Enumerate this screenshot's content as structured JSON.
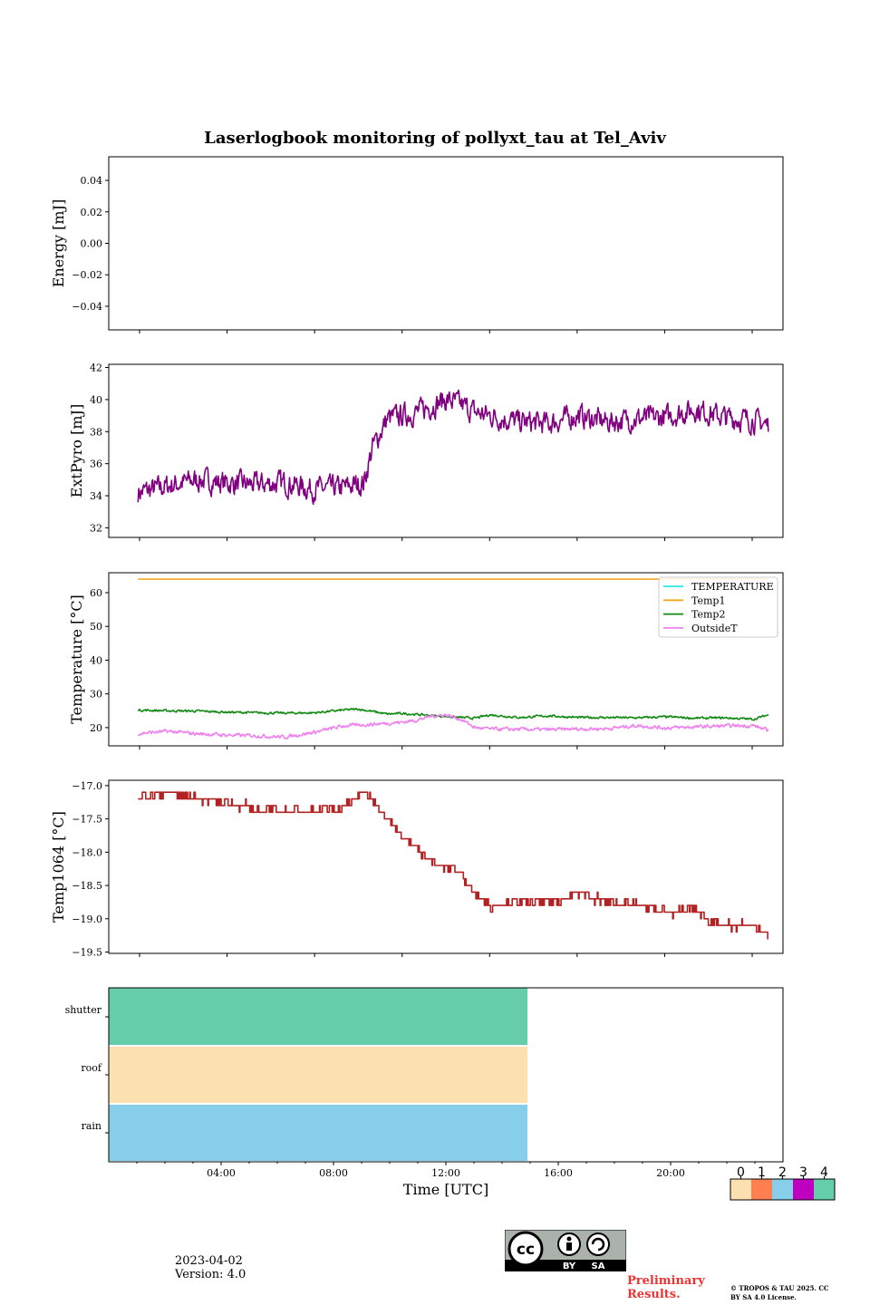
{
  "figure": {
    "title": "Laserlogbook monitoring of pollyxt_tau at Tel_Aviv",
    "date": "2023-04-02",
    "version": "Version: 4.0",
    "preliminary": "Preliminary Results.",
    "copyright": "© TROPOS & TAU 2025. CC BY SA 4.0 License.",
    "license_badge": [
      "BY",
      "SA"
    ]
  },
  "chart_data": [
    {
      "type": "line",
      "name": "energy",
      "ylabel": "Energy [mJ]",
      "ylim": [
        -0.055,
        0.055
      ],
      "yticks": [
        0.04,
        0.02,
        0.0,
        -0.02,
        -0.04
      ],
      "ytick_labels": [
        "0.04",
        "0.02",
        "0.00",
        "−0.02",
        "−0.04"
      ],
      "xlim": [
        -1.1,
        23.0
      ],
      "series": []
    },
    {
      "type": "line",
      "name": "extpyro",
      "ylabel": "ExtPyro [mJ]",
      "ylim": [
        31.4,
        42.2
      ],
      "yticks": [
        32,
        34,
        36,
        38,
        40,
        42
      ],
      "ytick_labels": [
        "32",
        "34",
        "36",
        "38",
        "40",
        "42"
      ],
      "xlim": [
        0.0,
        23.0
      ],
      "color": "#800080",
      "series": [
        {
          "x": [
            1.0,
            2.0,
            3.0,
            4.0,
            5.0,
            6.0,
            7.0,
            8.0,
            8.7,
            9.0,
            9.5,
            10.0,
            10.5,
            11.0,
            11.5,
            12.0,
            12.5,
            13.0,
            14.0,
            15.0,
            16.0,
            17.0,
            18.0,
            19.0,
            20.0,
            21.0,
            22.0,
            22.5
          ],
          "y": [
            34.2,
            34.6,
            35.0,
            34.8,
            34.7,
            34.8,
            34.4,
            34.5,
            34.8,
            37.0,
            38.8,
            39.0,
            39.2,
            39.6,
            40.0,
            39.7,
            39.2,
            39.0,
            38.6,
            38.5,
            39.0,
            38.6,
            38.8,
            38.9,
            39.4,
            38.9,
            38.7,
            38.4
          ],
          "noise_amplitude": 1.1
        }
      ]
    },
    {
      "type": "line",
      "name": "temperature",
      "ylabel": "Temperature [°C]",
      "ylim": [
        14.6,
        65.9
      ],
      "yticks": [
        20,
        30,
        40,
        50,
        60
      ],
      "ytick_labels": [
        "20",
        "30",
        "40",
        "50",
        "60"
      ],
      "xlim": [
        0.0,
        23.0
      ],
      "legend": "top-right",
      "series": [
        {
          "name": "TEMPERATURE",
          "color": "#2ee8e8",
          "x": [],
          "y": []
        },
        {
          "name": "Temp1",
          "color": "#f5a623",
          "x": [
            1.0,
            22.5
          ],
          "y": [
            64.0,
            64.0
          ]
        },
        {
          "name": "Temp2",
          "color": "#138a13",
          "x": [
            1.0,
            2.0,
            3.0,
            4.0,
            5.0,
            6.0,
            7.0,
            8.0,
            8.5,
            9.0,
            9.5,
            10.0,
            11.0,
            12.0,
            12.5,
            13.0,
            14.0,
            15.0,
            16.0,
            17.0,
            18.0,
            19.0,
            20.0,
            21.0,
            22.0,
            22.5
          ],
          "y": [
            25.2,
            25.0,
            24.9,
            24.6,
            24.4,
            24.3,
            24.4,
            25.2,
            25.5,
            24.8,
            24.0,
            24.2,
            23.6,
            23.0,
            22.8,
            23.8,
            23.0,
            23.5,
            23.0,
            23.0,
            22.9,
            23.2,
            22.8,
            22.9,
            22.5,
            23.8
          ],
          "noise_amplitude": 0.5
        },
        {
          "name": "OutsideT",
          "color": "#ee82ee",
          "x": [
            1.0,
            2.0,
            3.0,
            4.0,
            5.0,
            6.0,
            7.0,
            8.0,
            9.0,
            10.0,
            10.5,
            11.0,
            11.5,
            12.0,
            12.5,
            13.0,
            14.0,
            15.0,
            16.0,
            17.0,
            18.0,
            19.0,
            20.0,
            21.0,
            22.0,
            22.5
          ],
          "y": [
            18.3,
            18.9,
            18.2,
            17.8,
            17.6,
            17.2,
            18.6,
            20.5,
            21.0,
            21.6,
            22.2,
            23.4,
            23.8,
            22.5,
            20.0,
            19.6,
            19.5,
            19.4,
            19.6,
            19.7,
            20.6,
            19.9,
            20.2,
            20.5,
            20.6,
            19.1
          ],
          "noise_amplitude": 0.8
        }
      ]
    },
    {
      "type": "line",
      "name": "temp1064",
      "ylabel": "Temp1064 [°C]",
      "ylim": [
        -19.52,
        -16.92
      ],
      "yticks": [
        -17.0,
        -17.5,
        -18.0,
        -18.5,
        -19.0,
        -19.5
      ],
      "ytick_labels": [
        "−17.0",
        "−17.5",
        "−18.0",
        "−18.5",
        "−19.0",
        "−19.5"
      ],
      "xlim": [
        0.0,
        23.0
      ],
      "color": "#b22222",
      "step": 0.1,
      "series": [
        {
          "x": [
            1.0,
            2.0,
            3.0,
            4.0,
            5.0,
            6.0,
            7.0,
            8.0,
            8.7,
            9.3,
            10.0,
            10.5,
            11.0,
            11.5,
            12.0,
            12.5,
            13.0,
            14.0,
            15.0,
            16.0,
            17.0,
            18.0,
            19.0,
            20.0,
            20.5,
            21.0,
            22.0,
            22.5
          ],
          "y": [
            -17.17,
            -17.12,
            -17.18,
            -17.25,
            -17.35,
            -17.4,
            -17.37,
            -17.33,
            -17.1,
            -17.35,
            -17.75,
            -17.95,
            -18.15,
            -18.22,
            -18.3,
            -18.65,
            -18.8,
            -18.75,
            -18.75,
            -18.62,
            -18.75,
            -18.8,
            -18.9,
            -18.85,
            -19.05,
            -19.1,
            -19.1,
            -19.28
          ],
          "noise_amplitude": 0.09
        }
      ]
    },
    {
      "type": "heatmap",
      "name": "status",
      "rows": [
        "shutter",
        "roof",
        "rain"
      ],
      "row_values": [
        4,
        0,
        2
      ],
      "x_start_utc": 0.0,
      "x_end_utc": 15.0,
      "xlim": [
        0.0,
        24.0
      ],
      "xticks": [
        4,
        8,
        12,
        16,
        20
      ],
      "xtick_labels": [
        "04:00",
        "08:00",
        "12:00",
        "16:00",
        "20:00"
      ],
      "xlabel": "Time [UTC]",
      "colorbar": {
        "ticks": [
          "0",
          "1",
          "2",
          "3",
          "4"
        ],
        "colors": [
          "#fde0af",
          "#ff7f50",
          "#87ceeb",
          "#c000c0",
          "#66cdaa"
        ]
      }
    }
  ]
}
